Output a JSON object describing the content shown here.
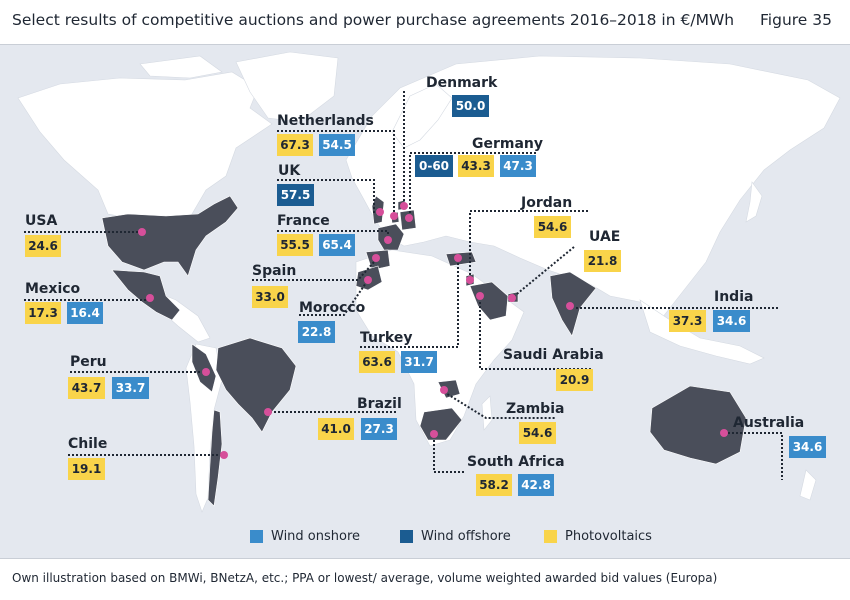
{
  "header": {
    "title": "Select results of competitive auctions and power purchase agreements 2016–2018 in €/MWh",
    "figure": "Figure 35"
  },
  "colors": {
    "background": "#e4e8ef",
    "land": "#ffffff",
    "highlighted_country": "#4a4e5a",
    "marker": "#d64f9a",
    "photovoltaics": "#f9d44a",
    "wind_onshore": "#3a8ccb",
    "wind_offshore": "#1b5c91"
  },
  "legend": {
    "wind_onshore": "Wind onshore",
    "wind_offshore": "Wind offshore",
    "photovoltaics": "Photovoltaics"
  },
  "countries": {
    "usa": {
      "name": "USA",
      "pv": "24.6"
    },
    "mexico": {
      "name": "Mexico",
      "pv": "17.3",
      "onshore": "16.4"
    },
    "peru": {
      "name": "Peru",
      "pv": "43.7",
      "onshore": "33.7"
    },
    "chile": {
      "name": "Chile",
      "pv": "19.1"
    },
    "brazil": {
      "name": "Brazil",
      "pv": "41.0",
      "onshore": "27.3"
    },
    "uk": {
      "name": "UK",
      "offshore": "57.5"
    },
    "netherlands": {
      "name": "Netherlands",
      "pv": "67.3",
      "onshore": "54.5"
    },
    "denmark": {
      "name": "Denmark",
      "offshore": "50.0"
    },
    "germany": {
      "name": "Germany",
      "offshore": "0-60",
      "pv": "43.3",
      "onshore": "47.3"
    },
    "france": {
      "name": "France",
      "pv": "55.5",
      "onshore": "65.4"
    },
    "spain": {
      "name": "Spain",
      "pv": "33.0"
    },
    "morocco": {
      "name": "Morocco",
      "onshore": "22.8"
    },
    "turkey": {
      "name": "Turkey",
      "pv": "63.6",
      "onshore": "31.7"
    },
    "jordan": {
      "name": "Jordan",
      "pv": "54.6"
    },
    "uae": {
      "name": "UAE",
      "pv": "21.8"
    },
    "saudi_arabia": {
      "name": "Saudi Arabia",
      "pv": "20.9"
    },
    "india": {
      "name": "India",
      "pv": "37.3",
      "onshore": "34.6"
    },
    "zambia": {
      "name": "Zambia",
      "pv": "54.6"
    },
    "south_africa": {
      "name": "South Africa",
      "pv": "58.2",
      "onshore": "42.8"
    },
    "australia": {
      "name": "Australia",
      "onshore": "34.6"
    }
  },
  "footnote": "Own illustration based on BMWi, BNetzA, etc.; PPA or lowest/ average, volume weighted awarded bid values (Europa)"
}
